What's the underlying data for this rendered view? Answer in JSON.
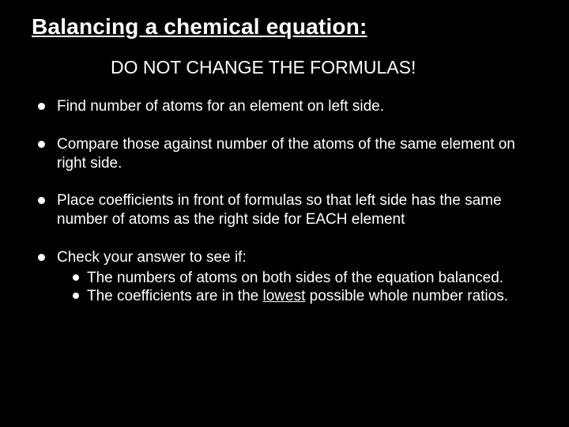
{
  "title": "Balancing a chemical equation:",
  "subtitle": "DO NOT CHANGE THE FORMULAS!",
  "bullets": {
    "b1": "Find number of atoms for an element on left side.",
    "b2": "Compare those against number of the atoms of the same element on right side.",
    "b3": "Place coefficients in front of formulas so that left side has the same number of atoms as the right side for EACH element",
    "b4_lead": "Check your answer to see if:",
    "b4_sub1": "The numbers of atoms on both sides of the equation balanced.",
    "b4_sub2_a": "The coefficients are in the ",
    "b4_sub2_u": "lowest",
    "b4_sub2_b": " possible whole number ratios."
  },
  "colors": {
    "background": "#000000",
    "text": "#ffffff"
  },
  "fonts": {
    "family": "Arial",
    "title_size_pt": 28,
    "subtitle_size_pt": 23,
    "body_size_pt": 19
  }
}
